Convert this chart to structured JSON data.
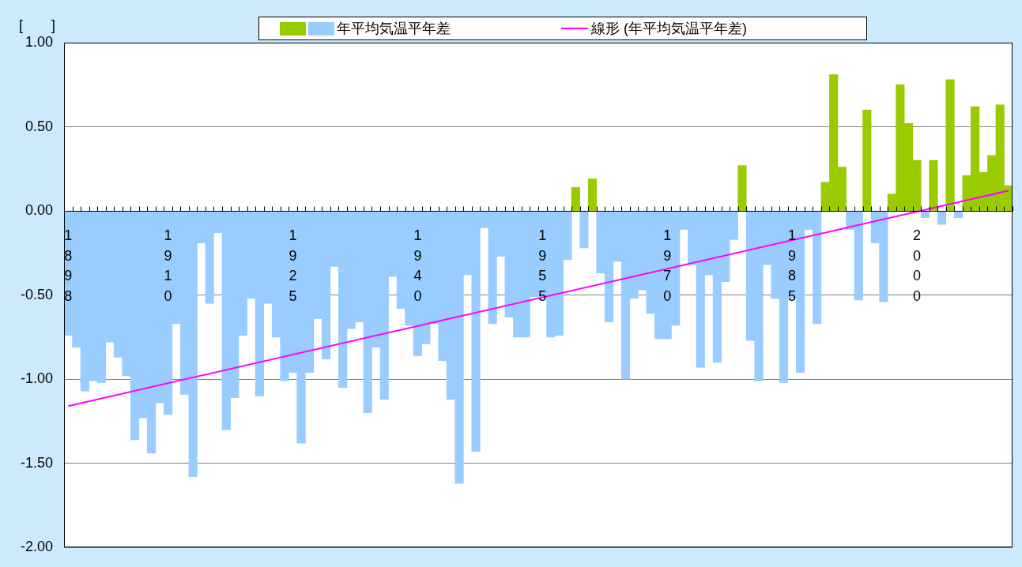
{
  "chart_data": {
    "type": "bar",
    "ylabel": "[　　]",
    "categories": [
      "1898",
      null,
      null,
      null,
      null,
      null,
      null,
      null,
      null,
      null,
      null,
      null,
      "1910",
      null,
      null,
      null,
      null,
      null,
      null,
      null,
      null,
      null,
      null,
      null,
      null,
      null,
      null,
      "1925",
      null,
      null,
      null,
      null,
      null,
      null,
      null,
      null,
      null,
      null,
      null,
      null,
      null,
      null,
      "1940",
      null,
      null,
      null,
      null,
      null,
      null,
      null,
      null,
      null,
      null,
      null,
      null,
      null,
      null,
      "1955",
      null,
      null,
      null,
      null,
      null,
      null,
      null,
      null,
      null,
      null,
      null,
      null,
      null,
      null,
      "1970",
      null,
      null,
      null,
      null,
      null,
      null,
      null,
      null,
      null,
      null,
      null,
      null,
      null,
      null,
      "1985",
      null,
      null,
      null,
      null,
      null,
      null,
      null,
      null,
      null,
      null,
      null,
      null,
      null,
      null,
      "2000",
      null,
      null,
      null,
      null,
      null,
      null,
      null,
      null,
      null,
      null,
      null
    ],
    "series": [
      {
        "name": "年平均気温平年差",
        "values": [
          -0.74,
          -0.81,
          -1.07,
          -1.01,
          -1.02,
          -0.78,
          -0.87,
          -0.98,
          -1.36,
          -1.23,
          -1.44,
          -1.14,
          -1.21,
          -0.67,
          -1.09,
          -1.58,
          -0.19,
          -0.55,
          -0.13,
          -1.3,
          -1.11,
          -0.74,
          -0.52,
          -1.1,
          -0.55,
          -0.75,
          -1.01,
          -0.96,
          -1.38,
          -0.96,
          -0.64,
          -0.88,
          -0.33,
          -1.05,
          -0.7,
          -0.66,
          -1.2,
          -0.81,
          -1.12,
          -0.39,
          -0.58,
          -0.68,
          -0.86,
          -0.79,
          -0.67,
          -0.89,
          -1.12,
          -1.62,
          -0.38,
          -1.43,
          -0.1,
          -0.67,
          -0.27,
          -0.63,
          -0.75,
          -0.75,
          -0.51,
          -0.51,
          -0.75,
          -0.74,
          -0.29,
          0.14,
          -0.22,
          0.19,
          -0.37,
          -0.66,
          -0.3,
          -1.0,
          -0.52,
          -0.47,
          -0.61,
          -0.76,
          -0.76,
          -0.68,
          -0.11,
          -0.32,
          -0.93,
          -0.38,
          -0.9,
          -0.42,
          -0.17,
          0.27,
          -0.77,
          -1.01,
          -0.32,
          -0.52,
          -1.02,
          -0.52,
          -0.96,
          -0.11,
          -0.67,
          0.17,
          0.81,
          0.26,
          -0.11,
          -0.53,
          0.6,
          -0.19,
          -0.54,
          0.1,
          0.75,
          0.52,
          0.3,
          -0.04,
          0.3,
          -0.08,
          0.78,
          -0.04,
          0.21,
          0.62,
          0.23,
          0.33,
          0.63,
          0.15
        ],
        "colors": [
          "#99ccff",
          "#99ccff",
          "#99ccff",
          "#99ccff",
          "#99ccff",
          "#99ccff",
          "#99ccff",
          "#99ccff",
          "#99ccff",
          "#99ccff",
          "#99ccff",
          "#99ccff",
          "#99ccff",
          "#99ccff",
          "#99ccff",
          "#99ccff",
          "#99ccff",
          "#99ccff",
          "#99ccff",
          "#99ccff",
          "#99ccff",
          "#99ccff",
          "#99ccff",
          "#99ccff",
          "#99ccff",
          "#99ccff",
          "#99ccff",
          "#99ccff",
          "#99ccff",
          "#99ccff",
          "#99ccff",
          "#99ccff",
          "#99ccff",
          "#99ccff",
          "#99ccff",
          "#99ccff",
          "#99ccff",
          "#99ccff",
          "#99ccff",
          "#99ccff",
          "#99ccff",
          "#99ccff",
          "#99ccff",
          "#99ccff",
          "#99ccff",
          "#99ccff",
          "#99ccff",
          "#99ccff",
          "#99ccff",
          "#99ccff",
          "#99ccff",
          "#99ccff",
          "#99ccff",
          "#99ccff",
          "#99ccff",
          "#99ccff",
          "#99ccff",
          "#99ccff",
          "#99ccff",
          "#99ccff",
          "#99ccff",
          "#99cc00",
          "#99ccff",
          "#99cc00",
          "#99ccff",
          "#99ccff",
          "#99ccff",
          "#99ccff",
          "#99ccff",
          "#99ccff",
          "#99ccff",
          "#99ccff",
          "#99ccff",
          "#99ccff",
          "#99ccff",
          "#99ccff",
          "#99ccff",
          "#99ccff",
          "#99ccff",
          "#99ccff",
          "#99ccff",
          "#99cc00",
          "#99ccff",
          "#99ccff",
          "#99ccff",
          "#99ccff",
          "#99ccff",
          "#99ccff",
          "#99ccff",
          "#99ccff",
          "#99ccff",
          "#99cc00",
          "#99cc00",
          "#99cc00",
          "#99ccff",
          "#99ccff",
          "#99cc00",
          "#99ccff",
          "#99ccff",
          "#99cc00",
          "#99cc00",
          "#99cc00",
          "#99cc00",
          "#99ccff",
          "#99cc00",
          "#99ccff",
          "#99cc00",
          "#99ccff",
          "#99cc00",
          "#99cc00",
          "#99cc00",
          "#99cc00",
          "#99cc00",
          "#99cc00"
        ]
      },
      {
        "name": "線形 (年平均気温平年差)",
        "type": "line",
        "color": "#ff00ff",
        "values": [
          -1.16,
          null,
          null,
          null,
          null,
          null,
          null,
          null,
          null,
          null,
          null,
          null,
          null,
          null,
          null,
          null,
          null,
          null,
          null,
          null,
          null,
          null,
          null,
          null,
          null,
          null,
          null,
          null,
          null,
          null,
          null,
          null,
          null,
          null,
          null,
          null,
          null,
          null,
          null,
          null,
          null,
          null,
          null,
          null,
          null,
          null,
          null,
          null,
          null,
          null,
          null,
          null,
          null,
          null,
          null,
          null,
          null,
          null,
          null,
          null,
          null,
          null,
          null,
          null,
          null,
          null,
          null,
          null,
          null,
          null,
          null,
          null,
          null,
          null,
          null,
          null,
          null,
          null,
          null,
          null,
          null,
          null,
          null,
          null,
          null,
          null,
          null,
          null,
          null,
          null,
          null,
          null,
          null,
          null,
          null,
          null,
          null,
          null,
          null,
          null,
          null,
          null,
          null,
          null,
          null,
          null,
          null,
          null,
          null,
          null,
          null,
          null,
          null,
          0.12
        ]
      }
    ],
    "ylim": [
      -2,
      1
    ],
    "yticks": [
      {
        "value": -2,
        "label": "-2.00"
      },
      {
        "value": -1.5,
        "label": "-1.50"
      },
      {
        "value": -1,
        "label": "-1.00"
      },
      {
        "value": -0.5,
        "label": "-0.50"
      },
      {
        "value": 0,
        "label": "0.00"
      },
      {
        "value": 0.5,
        "label": "0.50"
      },
      {
        "value": 1,
        "label": "1.00"
      }
    ],
    "grid": "y",
    "legend": "top",
    "marker": "none"
  }
}
